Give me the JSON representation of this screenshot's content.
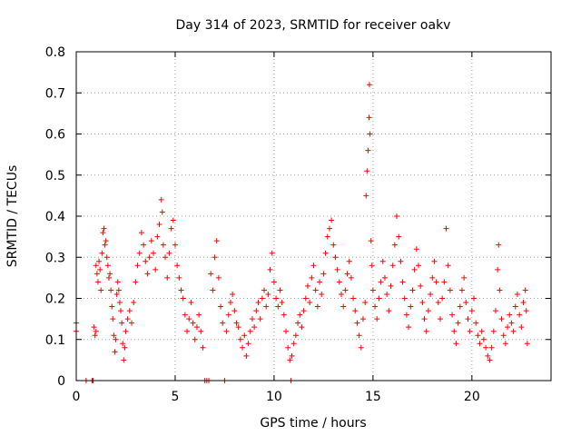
{
  "chart_data": {
    "type": "scatter",
    "title": "Day 314 of 2023, SRMTID for receiver oakv",
    "xlabel": "GPS time / hours",
    "ylabel": "SRMTID / TECUs",
    "xlim": [
      0,
      24
    ],
    "ylim": [
      0,
      0.8
    ],
    "xticks": [
      0,
      5,
      10,
      15,
      20
    ],
    "yticks": [
      0,
      0.1,
      0.2,
      0.3,
      0.4,
      0.5,
      0.6,
      0.7,
      0.8
    ],
    "xtick_labels": [
      "0",
      "5",
      "10",
      "15",
      "20"
    ],
    "ytick_labels": [
      "0",
      "0.1",
      "0.2",
      "0.3",
      "0.4",
      "0.5",
      "0.6",
      "0.7",
      "0.8"
    ],
    "grid": true,
    "marker": "+",
    "color": "#ff0000",
    "series": [
      {
        "name": "SRMTID",
        "points": [
          [
            0.0,
            0.14
          ],
          [
            0.0,
            0.12
          ],
          [
            0.5,
            0.0
          ],
          [
            0.8,
            0.0
          ],
          [
            0.85,
            0.0
          ],
          [
            0.9,
            0.13
          ],
          [
            0.95,
            0.11
          ],
          [
            1.0,
            0.12
          ],
          [
            1.0,
            0.28
          ],
          [
            1.05,
            0.26
          ],
          [
            1.1,
            0.24
          ],
          [
            1.15,
            0.29
          ],
          [
            1.2,
            0.27
          ],
          [
            1.25,
            0.22
          ],
          [
            1.3,
            0.31
          ],
          [
            1.35,
            0.36
          ],
          [
            1.4,
            0.37
          ],
          [
            1.45,
            0.33
          ],
          [
            1.5,
            0.34
          ],
          [
            1.55,
            0.3
          ],
          [
            1.6,
            0.28
          ],
          [
            1.65,
            0.25
          ],
          [
            1.7,
            0.26
          ],
          [
            1.75,
            0.22
          ],
          [
            1.8,
            0.18
          ],
          [
            1.85,
            0.15
          ],
          [
            1.9,
            0.11
          ],
          [
            1.95,
            0.07
          ],
          [
            2.0,
            0.1
          ],
          [
            2.05,
            0.21
          ],
          [
            2.1,
            0.24
          ],
          [
            2.15,
            0.22
          ],
          [
            2.2,
            0.19
          ],
          [
            2.25,
            0.17
          ],
          [
            2.3,
            0.14
          ],
          [
            2.35,
            0.09
          ],
          [
            2.4,
            0.05
          ],
          [
            2.45,
            0.08
          ],
          [
            2.5,
            0.12
          ],
          [
            2.6,
            0.15
          ],
          [
            2.7,
            0.17
          ],
          [
            2.8,
            0.14
          ],
          [
            2.9,
            0.19
          ],
          [
            3.0,
            0.24
          ],
          [
            3.1,
            0.28
          ],
          [
            3.2,
            0.31
          ],
          [
            3.3,
            0.36
          ],
          [
            3.4,
            0.33
          ],
          [
            3.5,
            0.29
          ],
          [
            3.6,
            0.26
          ],
          [
            3.7,
            0.3
          ],
          [
            3.8,
            0.34
          ],
          [
            3.9,
            0.31
          ],
          [
            4.0,
            0.27
          ],
          [
            4.1,
            0.35
          ],
          [
            4.2,
            0.38
          ],
          [
            4.3,
            0.44
          ],
          [
            4.35,
            0.41
          ],
          [
            4.4,
            0.33
          ],
          [
            4.5,
            0.3
          ],
          [
            4.6,
            0.25
          ],
          [
            4.7,
            0.31
          ],
          [
            4.8,
            0.37
          ],
          [
            4.9,
            0.39
          ],
          [
            5.0,
            0.33
          ],
          [
            5.1,
            0.28
          ],
          [
            5.2,
            0.25
          ],
          [
            5.3,
            0.22
          ],
          [
            5.4,
            0.2
          ],
          [
            5.5,
            0.16
          ],
          [
            5.6,
            0.12
          ],
          [
            5.7,
            0.15
          ],
          [
            5.8,
            0.19
          ],
          [
            5.9,
            0.14
          ],
          [
            6.0,
            0.1
          ],
          [
            6.1,
            0.13
          ],
          [
            6.2,
            0.16
          ],
          [
            6.3,
            0.12
          ],
          [
            6.4,
            0.08
          ],
          [
            6.5,
            0.0
          ],
          [
            6.6,
            0.0
          ],
          [
            6.7,
            0.0
          ],
          [
            6.8,
            0.26
          ],
          [
            6.9,
            0.22
          ],
          [
            7.0,
            0.3
          ],
          [
            7.1,
            0.34
          ],
          [
            7.2,
            0.25
          ],
          [
            7.3,
            0.18
          ],
          [
            7.4,
            0.14
          ],
          [
            7.5,
            0.0
          ],
          [
            7.6,
            0.12
          ],
          [
            7.7,
            0.16
          ],
          [
            7.8,
            0.19
          ],
          [
            7.9,
            0.21
          ],
          [
            8.0,
            0.17
          ],
          [
            8.1,
            0.14
          ],
          [
            8.2,
            0.13
          ],
          [
            8.3,
            0.1
          ],
          [
            8.4,
            0.08
          ],
          [
            8.5,
            0.11
          ],
          [
            8.6,
            0.06
          ],
          [
            8.7,
            0.09
          ],
          [
            8.8,
            0.12
          ],
          [
            8.9,
            0.15
          ],
          [
            9.0,
            0.13
          ],
          [
            9.1,
            0.17
          ],
          [
            9.2,
            0.19
          ],
          [
            9.3,
            0.15
          ],
          [
            9.4,
            0.2
          ],
          [
            9.5,
            0.22
          ],
          [
            9.6,
            0.18
          ],
          [
            9.7,
            0.21
          ],
          [
            9.8,
            0.27
          ],
          [
            9.9,
            0.31
          ],
          [
            10.0,
            0.24
          ],
          [
            10.1,
            0.2
          ],
          [
            10.2,
            0.18
          ],
          [
            10.3,
            0.22
          ],
          [
            10.4,
            0.19
          ],
          [
            10.5,
            0.16
          ],
          [
            10.6,
            0.12
          ],
          [
            10.7,
            0.08
          ],
          [
            10.8,
            0.05
          ],
          [
            10.85,
            0.0
          ],
          [
            10.9,
            0.06
          ],
          [
            11.0,
            0.09
          ],
          [
            11.1,
            0.11
          ],
          [
            11.2,
            0.14
          ],
          [
            11.3,
            0.16
          ],
          [
            11.4,
            0.13
          ],
          [
            11.5,
            0.17
          ],
          [
            11.6,
            0.2
          ],
          [
            11.7,
            0.23
          ],
          [
            11.8,
            0.19
          ],
          [
            11.9,
            0.25
          ],
          [
            12.0,
            0.28
          ],
          [
            12.1,
            0.22
          ],
          [
            12.2,
            0.18
          ],
          [
            12.3,
            0.24
          ],
          [
            12.4,
            0.21
          ],
          [
            12.5,
            0.26
          ],
          [
            12.6,
            0.31
          ],
          [
            12.7,
            0.35
          ],
          [
            12.8,
            0.37
          ],
          [
            12.9,
            0.39
          ],
          [
            13.0,
            0.33
          ],
          [
            13.1,
            0.3
          ],
          [
            13.2,
            0.27
          ],
          [
            13.3,
            0.24
          ],
          [
            13.4,
            0.21
          ],
          [
            13.5,
            0.18
          ],
          [
            13.6,
            0.22
          ],
          [
            13.7,
            0.26
          ],
          [
            13.8,
            0.29
          ],
          [
            13.9,
            0.25
          ],
          [
            14.0,
            0.2
          ],
          [
            14.1,
            0.17
          ],
          [
            14.2,
            0.14
          ],
          [
            14.3,
            0.11
          ],
          [
            14.4,
            0.08
          ],
          [
            14.5,
            0.15
          ],
          [
            14.6,
            0.19
          ],
          [
            14.65,
            0.45
          ],
          [
            14.7,
            0.51
          ],
          [
            14.75,
            0.56
          ],
          [
            14.8,
            0.64
          ],
          [
            14.82,
            0.72
          ],
          [
            14.85,
            0.6
          ],
          [
            14.9,
            0.34
          ],
          [
            14.95,
            0.28
          ],
          [
            15.0,
            0.22
          ],
          [
            15.1,
            0.18
          ],
          [
            15.2,
            0.15
          ],
          [
            15.3,
            0.2
          ],
          [
            15.4,
            0.24
          ],
          [
            15.5,
            0.29
          ],
          [
            15.6,
            0.25
          ],
          [
            15.7,
            0.21
          ],
          [
            15.8,
            0.17
          ],
          [
            15.9,
            0.23
          ],
          [
            16.0,
            0.28
          ],
          [
            16.1,
            0.33
          ],
          [
            16.2,
            0.4
          ],
          [
            16.3,
            0.35
          ],
          [
            16.4,
            0.29
          ],
          [
            16.5,
            0.24
          ],
          [
            16.6,
            0.2
          ],
          [
            16.7,
            0.16
          ],
          [
            16.8,
            0.13
          ],
          [
            16.9,
            0.18
          ],
          [
            17.0,
            0.22
          ],
          [
            17.1,
            0.27
          ],
          [
            17.2,
            0.32
          ],
          [
            17.3,
            0.28
          ],
          [
            17.4,
            0.23
          ],
          [
            17.5,
            0.19
          ],
          [
            17.6,
            0.15
          ],
          [
            17.7,
            0.12
          ],
          [
            17.8,
            0.17
          ],
          [
            17.9,
            0.21
          ],
          [
            18.0,
            0.25
          ],
          [
            18.1,
            0.29
          ],
          [
            18.2,
            0.24
          ],
          [
            18.3,
            0.19
          ],
          [
            18.4,
            0.15
          ],
          [
            18.5,
            0.2
          ],
          [
            18.6,
            0.24
          ],
          [
            18.7,
            0.37
          ],
          [
            18.8,
            0.28
          ],
          [
            18.9,
            0.22
          ],
          [
            19.0,
            0.16
          ],
          [
            19.1,
            0.12
          ],
          [
            19.2,
            0.09
          ],
          [
            19.3,
            0.14
          ],
          [
            19.4,
            0.18
          ],
          [
            19.5,
            0.22
          ],
          [
            19.6,
            0.25
          ],
          [
            19.7,
            0.19
          ],
          [
            19.8,
            0.15
          ],
          [
            19.9,
            0.12
          ],
          [
            20.0,
            0.17
          ],
          [
            20.1,
            0.2
          ],
          [
            20.2,
            0.14
          ],
          [
            20.3,
            0.11
          ],
          [
            20.4,
            0.09
          ],
          [
            20.5,
            0.12
          ],
          [
            20.6,
            0.1
          ],
          [
            20.7,
            0.08
          ],
          [
            20.8,
            0.06
          ],
          [
            20.9,
            0.05
          ],
          [
            21.0,
            0.08
          ],
          [
            21.1,
            0.12
          ],
          [
            21.2,
            0.17
          ],
          [
            21.3,
            0.27
          ],
          [
            21.35,
            0.33
          ],
          [
            21.4,
            0.22
          ],
          [
            21.5,
            0.15
          ],
          [
            21.6,
            0.11
          ],
          [
            21.7,
            0.09
          ],
          [
            21.8,
            0.13
          ],
          [
            21.9,
            0.16
          ],
          [
            22.0,
            0.14
          ],
          [
            22.1,
            0.12
          ],
          [
            22.2,
            0.18
          ],
          [
            22.3,
            0.21
          ],
          [
            22.4,
            0.16
          ],
          [
            22.5,
            0.13
          ],
          [
            22.6,
            0.19
          ],
          [
            22.7,
            0.22
          ],
          [
            22.75,
            0.17
          ],
          [
            22.8,
            0.09
          ]
        ]
      }
    ]
  }
}
